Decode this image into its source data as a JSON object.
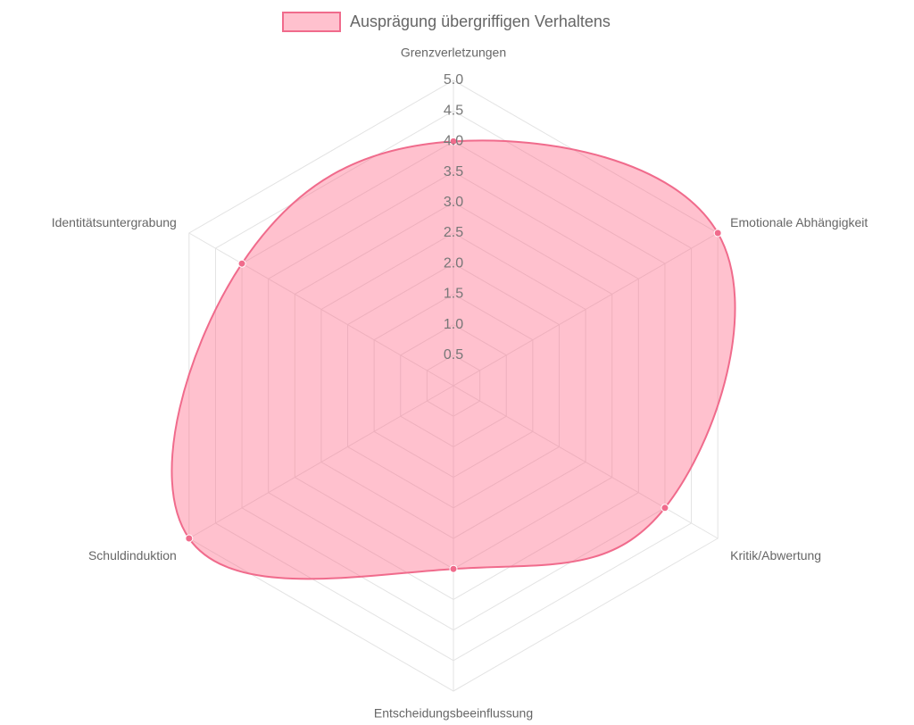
{
  "chart_data": {
    "type": "radar",
    "categories": [
      "Grenzverletzungen",
      "Emotionale Abhängigkeit",
      "Kritik/Abwertung",
      "Entscheidungsbeeinflussung",
      "Schuldinduktion",
      "Identitätsuntergrabung"
    ],
    "series": [
      {
        "name": "Ausprägung übergriffigen Verhaltens",
        "color": "#f06b8c",
        "fill": "rgba(255,99,132,0.4)",
        "values": [
          4,
          5,
          4,
          3,
          5,
          4
        ]
      }
    ],
    "ylim": [
      0,
      5
    ],
    "yticks": [
      0.5,
      {
        "value": 1,
        "label": "1.0"
      },
      1.5,
      {
        "value": 2,
        "label": "2.0"
      },
      2.5,
      {
        "value": 3,
        "label": "3.0"
      },
      3.5,
      {
        "value": 4,
        "label": "4.0"
      },
      4.5,
      {
        "value": 5,
        "label": "5.0"
      }
    ],
    "grid": true,
    "legend": "top"
  }
}
